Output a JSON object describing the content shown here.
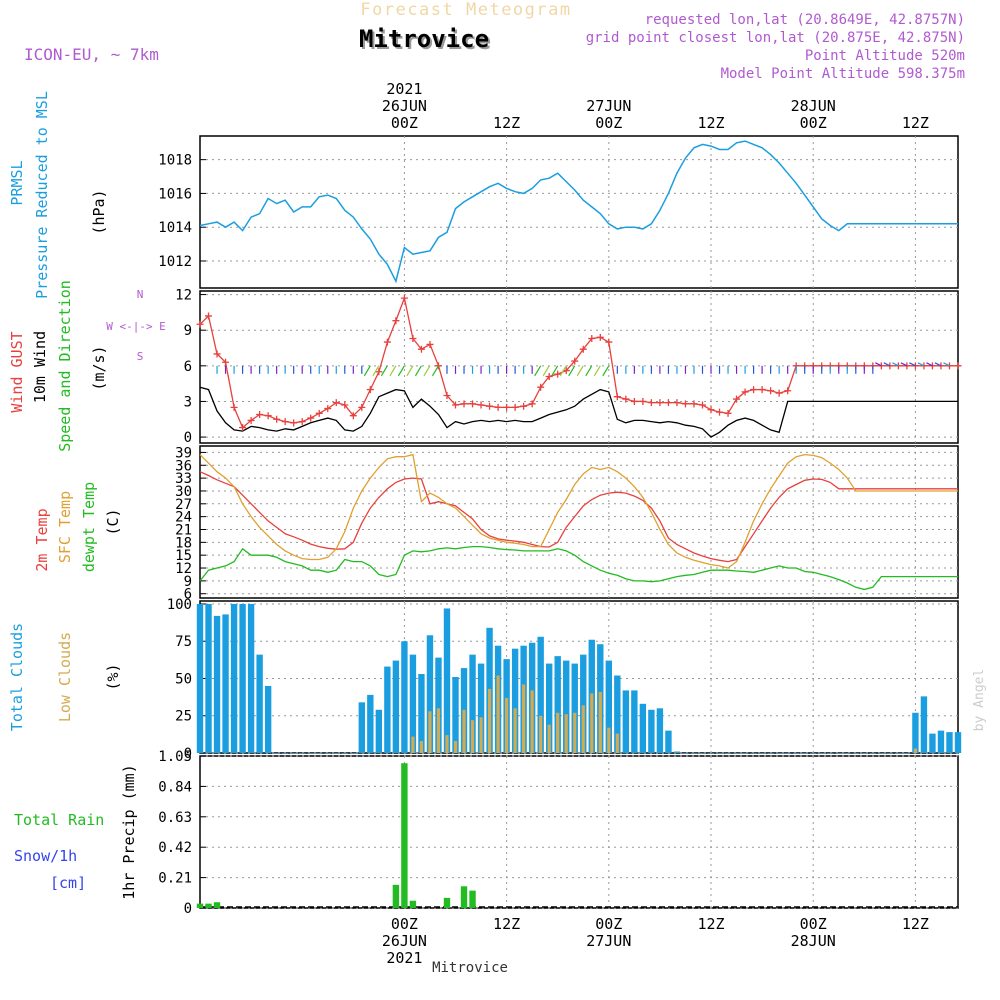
{
  "header": {
    "product": "Forecast Meteogram",
    "location": "Mitrovice",
    "model": "ICON-EU, ~ 7km",
    "requested": "requested lon,lat (20.8649E, 42.8757N)",
    "grid": "grid point closest lon,lat (20.875E, 42.875N)",
    "point_alt": "Point Altitude 520m",
    "model_alt": "Model Point Altitude 598.375m",
    "credit": "by Angel",
    "footer": "Mitrovice"
  },
  "time_axis": {
    "top": [
      {
        "h": 24,
        "lines": [
          "2021",
          "26JUN",
          "00Z"
        ]
      },
      {
        "h": 36,
        "lines": [
          "12Z"
        ]
      },
      {
        "h": 48,
        "lines": [
          "27JUN",
          "00Z"
        ]
      },
      {
        "h": 60,
        "lines": [
          "12Z"
        ]
      },
      {
        "h": 72,
        "lines": [
          "28JUN",
          "00Z"
        ]
      },
      {
        "h": 84,
        "lines": [
          "12Z"
        ]
      }
    ],
    "bottom": [
      {
        "h": 24,
        "lines": [
          "00Z",
          "26JUN",
          "2021"
        ]
      },
      {
        "h": 36,
        "lines": [
          "12Z"
        ]
      },
      {
        "h": 48,
        "lines": [
          "00Z",
          "27JUN"
        ]
      },
      {
        "h": 60,
        "lines": [
          "12Z"
        ]
      },
      {
        "h": 72,
        "lines": [
          "00Z",
          "28JUN"
        ]
      },
      {
        "h": 84,
        "lines": [
          "12Z"
        ]
      }
    ]
  },
  "colors": {
    "pressure": "#1a9ee0",
    "gust": "#e8403c",
    "wind": "#000000",
    "wind_dir": "#22bb22",
    "t2m": "#e8403c",
    "sfc": "#e0a030",
    "dew": "#22bb22",
    "total_clouds": "#1a9ee0",
    "low_clouds": "#d4aa50",
    "rain": "#22bb22",
    "snow": "#3344ee",
    "header_purple": "#b05ad0"
  },
  "panel_labels": {
    "pressure": [
      "PRMSL",
      "Pressure Reduced to MSL",
      "(hPa)"
    ],
    "wind": [
      "Wind GUST",
      "10m Wind",
      "Speed and Direction",
      "(m/s)"
    ],
    "compass": [
      "N",
      "W <-|-> E",
      "S"
    ],
    "temp": [
      "2m Temp",
      "SFC Temp",
      "dewpt Temp",
      "(C)"
    ],
    "clouds": [
      "Total Clouds",
      "Low Clouds",
      "(%)"
    ],
    "precip": [
      "Total  Rain",
      "Snow/1h",
      "[cm]",
      "1hr Precip (mm)"
    ]
  },
  "chart_data": [
    {
      "type": "line",
      "name": "prmsl",
      "yticks": [
        1012,
        1014,
        1016,
        1018
      ],
      "ylim": [
        1010.4,
        1019.4
      ],
      "x": [
        0,
        1,
        2,
        3,
        4,
        5,
        6,
        7,
        8,
        9,
        10,
        11,
        12,
        13,
        14,
        15,
        16,
        17,
        18,
        19,
        20,
        21,
        22,
        23,
        24,
        25,
        26,
        27,
        28,
        29,
        30,
        31,
        32,
        33,
        34,
        35,
        36,
        37,
        38,
        39,
        40,
        41,
        42,
        43,
        44,
        45,
        46,
        47,
        48,
        49,
        50,
        51,
        52,
        53,
        54,
        55,
        56,
        57,
        58,
        59,
        60,
        61,
        62,
        63,
        64,
        65,
        66,
        67,
        68,
        69,
        70,
        71,
        72,
        73,
        74,
        75,
        76,
        77,
        78,
        79,
        80,
        81,
        82,
        83,
        84,
        85,
        86,
        87,
        88,
        89
      ],
      "values": [
        1014.1,
        1014.2,
        1014.3,
        1014.0,
        1014.3,
        1013.8,
        1014.6,
        1014.8,
        1015.7,
        1015.4,
        1015.6,
        1014.9,
        1015.2,
        1015.2,
        1015.8,
        1015.9,
        1015.7,
        1015.0,
        1014.6,
        1013.9,
        1013.3,
        1012.4,
        1011.8,
        1010.8,
        1012.8,
        1012.4,
        1012.5,
        1012.6,
        1013.4,
        1013.7,
        1015.1,
        1015.5,
        1015.8,
        1016.1,
        1016.4,
        1016.6,
        1016.3,
        1016.1,
        1016.0,
        1016.3,
        1016.8,
        1016.9,
        1017.2,
        1016.7,
        1016.2,
        1015.6,
        1015.2,
        1014.8,
        1014.2,
        1013.9,
        1014.0,
        1014.0,
        1013.9,
        1014.2,
        1015.0,
        1016.0,
        1017.2,
        1018.1,
        1018.7,
        1018.9,
        1018.8,
        1018.6,
        1018.6,
        1019.0,
        1019.1,
        1018.9,
        1018.7,
        1018.3,
        1017.8,
        1017.2,
        1016.6,
        1015.9,
        1015.2,
        1014.5,
        1014.1,
        1013.8,
        1014.2,
        1014.2,
        1014.2,
        1014.2,
        1014.2,
        1014.2,
        1014.2,
        1014.2,
        1014.2,
        1014.2,
        1014.2,
        1014.2,
        1014.2,
        1014.2
      ]
    },
    {
      "type": "line",
      "name": "wind",
      "yticks": [
        0,
        3,
        6,
        9,
        12
      ],
      "ylim": [
        -0.5,
        12.3
      ],
      "series": [
        {
          "name": "Wind GUST",
          "values": [
            9.5,
            10.2,
            7.0,
            6.3,
            2.5,
            0.8,
            1.4,
            1.9,
            1.8,
            1.5,
            1.3,
            1.2,
            1.3,
            1.6,
            2.0,
            2.4,
            2.9,
            2.7,
            1.8,
            2.5,
            4.0,
            5.5,
            8.0,
            9.8,
            11.7,
            8.3,
            7.4,
            7.8,
            6.0,
            3.5,
            2.7,
            2.8,
            2.8,
            2.7,
            2.6,
            2.5,
            2.5,
            2.5,
            2.6,
            2.8,
            4.2,
            5.1,
            5.3,
            5.6,
            6.4,
            7.4,
            8.3,
            8.4,
            8.0,
            3.4,
            3.2,
            3.0,
            3.0,
            2.9,
            2.9,
            2.9,
            2.9,
            2.8,
            2.8,
            2.7,
            2.3,
            2.1,
            2.0,
            3.2,
            3.8,
            4.0,
            4.0,
            3.9,
            3.7,
            3.9,
            6.0,
            6.0,
            6.0,
            6.0,
            6.0,
            6.0,
            6.0,
            6.0,
            6.0,
            6.0,
            6.0,
            6.0,
            6.0,
            6.0,
            6.0,
            6.0,
            6.0,
            6.0,
            6.0,
            6.0
          ]
        },
        {
          "name": "10m Wind",
          "values": [
            4.2,
            4.0,
            2.2,
            1.2,
            0.6,
            0.5,
            0.9,
            0.8,
            0.6,
            0.5,
            0.7,
            0.6,
            0.9,
            1.2,
            1.4,
            1.6,
            1.4,
            0.6,
            0.5,
            0.9,
            2.0,
            3.4,
            3.7,
            4.0,
            3.9,
            2.5,
            3.2,
            2.6,
            1.9,
            0.8,
            1.3,
            1.1,
            1.3,
            1.4,
            1.3,
            1.4,
            1.3,
            1.4,
            1.3,
            1.3,
            1.6,
            1.9,
            2.1,
            2.3,
            2.6,
            3.2,
            3.6,
            4.0,
            3.8,
            1.5,
            1.2,
            1.4,
            1.4,
            1.3,
            1.2,
            1.3,
            1.2,
            1.0,
            0.9,
            0.7,
            0.0,
            0.4,
            1.0,
            1.4,
            1.6,
            1.4,
            1.0,
            0.6,
            0.4,
            3.0,
            3.0,
            3.0,
            3.0,
            3.0,
            3.0,
            3.0,
            3.0,
            3.0,
            3.0,
            3.0,
            3.0,
            3.0,
            3.0,
            3.0,
            3.0,
            3.0,
            3.0,
            3.0,
            3.0,
            3.0
          ]
        }
      ]
    },
    {
      "type": "line",
      "name": "temperature",
      "yticks": [
        6,
        9,
        12,
        15,
        18,
        21,
        24,
        27,
        30,
        33,
        36,
        39
      ],
      "ylim": [
        5,
        40.5
      ],
      "series": [
        {
          "name": "2m Temp",
          "values": [
            34.5,
            33.6,
            32.6,
            31.8,
            31.0,
            29.0,
            27.0,
            25.0,
            23.0,
            21.5,
            20.0,
            19.3,
            18.5,
            17.6,
            17.0,
            16.6,
            16.4,
            16.5,
            18.0,
            22.5,
            26.0,
            28.5,
            30.5,
            32.0,
            32.8,
            33.0,
            32.8,
            27.0,
            27.5,
            27.0,
            26.5,
            25.0,
            23.5,
            21.0,
            19.5,
            18.8,
            18.5,
            18.3,
            18.0,
            17.5,
            17.0,
            16.9,
            18.0,
            21.5,
            24.0,
            26.5,
            28.0,
            29.0,
            29.5,
            29.7,
            29.5,
            28.8,
            27.8,
            26.0,
            23.0,
            19.0,
            17.5,
            16.5,
            15.5,
            14.8,
            14.2,
            13.8,
            13.5,
            14.0,
            17.0,
            20.0,
            23.0,
            26.0,
            28.5,
            30.5,
            31.5,
            32.5,
            32.8,
            32.7,
            32.0,
            30.5,
            30.5,
            30.5,
            30.5,
            30.5,
            30.5,
            30.5,
            30.5,
            30.5,
            30.5,
            30.5,
            30.5,
            30.5,
            30.5,
            30.5
          ]
        },
        {
          "name": "SFC Temp",
          "values": [
            38.5,
            36.5,
            34.5,
            33.0,
            31.0,
            27.0,
            24.0,
            21.5,
            19.5,
            17.5,
            16.0,
            15.0,
            14.2,
            14.0,
            14.0,
            14.5,
            16.5,
            20.5,
            26.0,
            30.0,
            33.0,
            35.5,
            37.5,
            38.0,
            38.0,
            38.5,
            27.5,
            29.5,
            28.5,
            27.0,
            26.0,
            24.0,
            22.0,
            20.0,
            19.0,
            18.5,
            18.0,
            17.8,
            17.5,
            17.0,
            17.0,
            21.0,
            25.0,
            28.0,
            31.5,
            34.0,
            35.5,
            35.0,
            35.5,
            34.5,
            33.0,
            31.0,
            28.5,
            25.0,
            21.0,
            17.5,
            15.5,
            14.5,
            13.8,
            13.3,
            12.8,
            12.5,
            12.0,
            13.5,
            18.0,
            23.0,
            27.0,
            30.5,
            33.5,
            36.5,
            38.0,
            38.5,
            38.3,
            37.8,
            36.5,
            35.0,
            33.0,
            30.0,
            30.0,
            30.0,
            30.0,
            30.0,
            30.0,
            30.0,
            30.0,
            30.0,
            30.0,
            30.0,
            30.0,
            30.0
          ]
        },
        {
          "name": "dewpt Temp",
          "values": [
            9.0,
            11.5,
            12.0,
            12.5,
            13.5,
            16.5,
            15.0,
            15.0,
            15.0,
            14.5,
            13.5,
            13.0,
            12.5,
            11.5,
            11.5,
            11.0,
            11.5,
            14.0,
            13.5,
            13.5,
            12.5,
            10.5,
            10.0,
            10.5,
            15.0,
            16.0,
            15.8,
            16.0,
            16.5,
            16.7,
            16.5,
            16.8,
            17.0,
            17.0,
            16.8,
            16.5,
            16.3,
            16.2,
            16.0,
            16.0,
            16.0,
            16.0,
            16.5,
            16.0,
            15.0,
            13.5,
            12.5,
            11.5,
            10.8,
            10.3,
            9.5,
            9.0,
            9.0,
            8.8,
            9.0,
            9.5,
            10.0,
            10.3,
            10.5,
            11.0,
            11.5,
            11.5,
            11.5,
            11.3,
            11.2,
            11.0,
            11.5,
            12.0,
            12.5,
            12.0,
            12.0,
            11.2,
            11.0,
            10.5,
            10.0,
            9.3,
            8.5,
            7.5,
            7.0,
            7.5,
            10.0,
            10.0,
            10.0,
            10.0,
            10.0,
            10.0,
            10.0,
            10.0,
            10.0,
            10.0
          ]
        }
      ]
    },
    {
      "type": "bar",
      "name": "clouds",
      "yticks": [
        0,
        25,
        50,
        75,
        100
      ],
      "ylim": [
        0,
        102
      ],
      "series": [
        {
          "name": "Total Clouds",
          "values": [
            100,
            100,
            92,
            93,
            100,
            100,
            100,
            66,
            45,
            0,
            0,
            0,
            0,
            0,
            0,
            0,
            0,
            0,
            0,
            34,
            39,
            29,
            58,
            62,
            75,
            66,
            53,
            79,
            64,
            97,
            51,
            57,
            66,
            60,
            84,
            72,
            63,
            70,
            72,
            74,
            78,
            60,
            65,
            62,
            60,
            66,
            76,
            73,
            62,
            52,
            42,
            42,
            33,
            29,
            30,
            15,
            1,
            0,
            0,
            0,
            0,
            0,
            0,
            0,
            0,
            0,
            0,
            0,
            0,
            0,
            0,
            0,
            0,
            0,
            0,
            0,
            0,
            0,
            0,
            0,
            0,
            0,
            0,
            0,
            27,
            38,
            13,
            15,
            14,
            14
          ]
        },
        {
          "name": "Low Clouds",
          "values": [
            0,
            0,
            0,
            0,
            0,
            0,
            0,
            0,
            0,
            0,
            0,
            0,
            0,
            0,
            0,
            0,
            0,
            0,
            0,
            0,
            0,
            0,
            0,
            0,
            0,
            11,
            8,
            28,
            30,
            12,
            8,
            29,
            22,
            24,
            43,
            52,
            37,
            30,
            46,
            42,
            25,
            19,
            27,
            26,
            27,
            32,
            40,
            41,
            17,
            13,
            0,
            0,
            0,
            0,
            0,
            0,
            0,
            0,
            0,
            0,
            0,
            0,
            0,
            0,
            0,
            0,
            0,
            0,
            0,
            0,
            0,
            0,
            0,
            0,
            0,
            0,
            0,
            0,
            0,
            0,
            0,
            0,
            0,
            0,
            3,
            0,
            0,
            0,
            0,
            0
          ]
        }
      ]
    },
    {
      "type": "bar",
      "name": "precip",
      "yticks": [
        0,
        0.21,
        0.42,
        0.63,
        0.84,
        1.05
      ],
      "ylim": [
        0,
        1.05
      ],
      "series": [
        {
          "name": "Total Rain",
          "values": [
            0.03,
            0.03,
            0.04,
            0,
            0,
            0,
            0,
            0,
            0,
            0,
            0,
            0,
            0,
            0,
            0,
            0,
            0,
            0,
            0,
            0,
            0,
            0,
            0,
            0.16,
            1.0,
            0.05,
            0,
            0,
            0,
            0.07,
            0,
            0.15,
            0.12,
            0,
            0,
            0,
            0,
            0,
            0,
            0,
            0,
            0,
            0,
            0,
            0,
            0,
            0,
            0,
            0,
            0,
            0,
            0,
            0,
            0,
            0,
            0,
            0,
            0,
            0,
            0,
            0,
            0,
            0,
            0,
            0,
            0,
            0,
            0,
            0,
            0,
            0,
            0,
            0,
            0,
            0,
            0,
            0,
            0,
            0,
            0,
            0,
            0,
            0,
            0,
            0,
            0,
            0,
            0,
            0,
            0
          ]
        }
      ]
    }
  ]
}
